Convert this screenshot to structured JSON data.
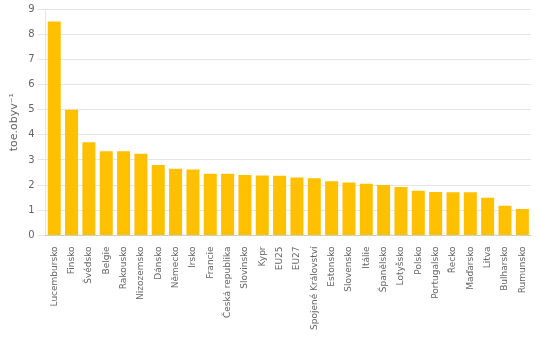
{
  "chart_data": {
    "type": "bar",
    "categories": [
      "Lucembursko",
      "Finsko",
      "Švédsko",
      "Belgie",
      "Rakousko",
      "Nizozemsko",
      "Dánsko",
      "Německo",
      "Irsko",
      "Francie",
      "Česká republika",
      "Slovinsko",
      "Kypr",
      "EU25",
      "EU27",
      "Spojené Království",
      "Estonsko",
      "Slovensko",
      "Itálie",
      "Španělsko",
      "Lotyšsko",
      "Polsko",
      "Portugalsko",
      "Řecko",
      "Maďarsko",
      "Litva",
      "Bulharsko",
      "Rumunsko"
    ],
    "values": [
      8.5,
      5.0,
      3.7,
      3.35,
      3.35,
      3.25,
      2.8,
      2.65,
      2.62,
      2.45,
      2.45,
      2.4,
      2.38,
      2.37,
      2.3,
      2.27,
      2.15,
      2.1,
      2.05,
      2.0,
      1.93,
      1.78,
      1.73,
      1.72,
      1.72,
      1.5,
      1.18,
      1.05
    ],
    "color": "#FFC000",
    "ylabel": "toe.obyv⁻¹",
    "ylim": [
      0,
      9
    ],
    "yticks": [
      0,
      1,
      2,
      3,
      4,
      5,
      6,
      7,
      8,
      9
    ],
    "grid": true
  }
}
